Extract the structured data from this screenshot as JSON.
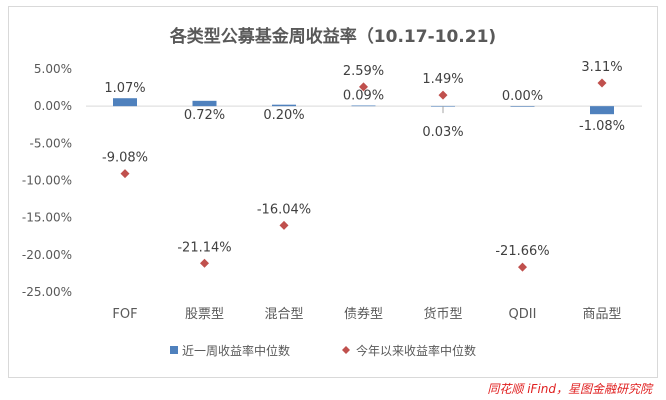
{
  "chart_data": {
    "type": "bar+scatter",
    "title": "各类型公募基金周收益率（10.17-10.21)",
    "categories": [
      "FOF",
      "股票型",
      "混合型",
      "债券型",
      "货币型",
      "QDII",
      "商品型"
    ],
    "series": [
      {
        "name": "近一周收益率中位数",
        "type": "bar",
        "color": "#4f81bd",
        "values": [
          1.07,
          0.72,
          0.2,
          0.09,
          0.03,
          0.0,
          -1.08
        ],
        "labels": [
          "1.07%",
          "0.72%",
          "0.20%",
          "0.09%",
          "0.03%",
          "0.00%",
          "-1.08%"
        ]
      },
      {
        "name": "今年以来收益率中位数",
        "type": "scatter",
        "marker": "diamond",
        "color": "#c0504d",
        "values": [
          -9.08,
          -21.14,
          -16.04,
          2.59,
          1.49,
          -21.66,
          3.11
        ],
        "labels": [
          "-9.08%",
          "-21.14%",
          "-16.04%",
          "2.59%",
          "1.49%",
          "-21.66%",
          "3.11%"
        ]
      }
    ],
    "ylim": [
      -25,
      5
    ],
    "yticks": [
      5,
      0,
      -5,
      -10,
      -15,
      -20,
      -25
    ],
    "ytick_labels": [
      "5.00%",
      "0.00%",
      "-5.00%",
      "-10.00%",
      "-15.00%",
      "-20.00%",
      "-25.00%"
    ],
    "grid": false,
    "legend": "bottom"
  },
  "source": "同花顺 iFind，星图金融研究院"
}
